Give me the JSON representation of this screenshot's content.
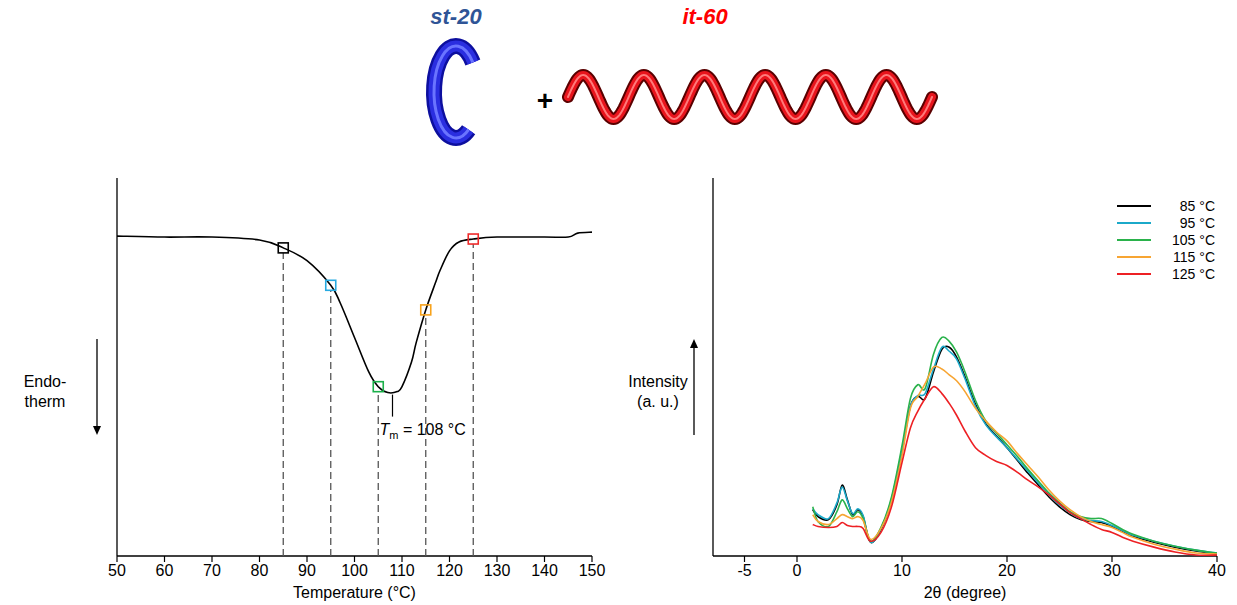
{
  "header": {
    "labels": [
      "st-20",
      "it-60"
    ],
    "colors": [
      "#2f5496",
      "#ff0000"
    ],
    "plus": "+"
  },
  "chart_data": [
    {
      "type": "line",
      "x": [
        50,
        60,
        70,
        80,
        85,
        90,
        95,
        97,
        100,
        103,
        105,
        107,
        109,
        110,
        112,
        113,
        115,
        117,
        118,
        120,
        122,
        125,
        130,
        140,
        145,
        147,
        150
      ],
      "series": [
        {
          "color": "#000000",
          "values": [
            325,
            324,
            324,
            321,
            313,
            300,
            275,
            257,
            222,
            187,
            172,
            166,
            167,
            172,
            197,
            217,
            250,
            277,
            290,
            310,
            319,
            322,
            324,
            324,
            324,
            328,
            329
          ]
        }
      ],
      "xlim": [
        50,
        150
      ],
      "xticks": [
        50,
        60,
        70,
        80,
        90,
        100,
        110,
        120,
        130,
        140,
        150
      ],
      "ylim": [
        0,
        384
      ],
      "xlabel": "Temperature (°C)",
      "ylabel": "Endo-\ntherm",
      "tick_labels": "x",
      "markers": {
        "x": [
          85,
          95,
          105,
          115,
          125
        ],
        "values": [
          313,
          275,
          172,
          250,
          322
        ],
        "colors": [
          "#000000",
          "#27aae1",
          "#1bb04a",
          "#f7a21b",
          "#ee2a2a"
        ]
      },
      "annotation": {
        "x": 108,
        "label": "Tm = 108 °C"
      }
    },
    {
      "type": "line",
      "x": [
        1.5,
        2,
        3,
        3.8,
        4.3,
        4.8,
        5.3,
        5.8,
        6.3,
        7,
        8,
        9,
        10,
        10.8,
        11.5,
        12.2,
        13,
        13.8,
        14.5,
        15.2,
        16,
        17,
        18,
        19,
        20,
        21,
        22,
        23,
        24,
        25,
        26,
        27,
        28,
        29,
        30,
        31,
        32,
        34,
        36,
        38,
        40
      ],
      "series": [
        {
          "name": "85 °C",
          "color": "#000000",
          "values": [
            47,
            40,
            37,
            52,
            72,
            57,
            42,
            47,
            40,
            14,
            27,
            57,
            107,
            152,
            162,
            160,
            187,
            210,
            212,
            202,
            182,
            154,
            134,
            122,
            110,
            97,
            84,
            72,
            60,
            50,
            42,
            37,
            35,
            34,
            30,
            25,
            20,
            14,
            9,
            5,
            2
          ]
        },
        {
          "name": "95 °C",
          "color": "#1ba9c9",
          "values": [
            48,
            42,
            38,
            54,
            70,
            56,
            43,
            48,
            41,
            14,
            28,
            58,
            108,
            152,
            163,
            165,
            190,
            212,
            208,
            200,
            180,
            152,
            133,
            121,
            110,
            98,
            86,
            74,
            62,
            52,
            44,
            38,
            36,
            35,
            31,
            26,
            21,
            15,
            10,
            6,
            3
          ]
        },
        {
          "name": "105 °C",
          "color": "#2ab24b",
          "values": [
            50,
            35,
            30,
            45,
            57,
            48,
            40,
            45,
            38,
            15,
            29,
            60,
            112,
            160,
            174,
            170,
            205,
            222,
            218,
            207,
            187,
            158,
            137,
            125,
            113,
            101,
            88,
            76,
            64,
            54,
            45,
            40,
            38,
            38,
            33,
            27,
            22,
            15,
            10,
            6,
            3
          ]
        },
        {
          "name": "115 °C",
          "color": "#f7a533",
          "values": [
            42,
            35,
            32,
            38,
            42,
            40,
            38,
            40,
            36,
            17,
            28,
            55,
            102,
            150,
            162,
            175,
            192,
            190,
            184,
            178,
            167,
            150,
            137,
            126,
            117,
            104,
            92,
            80,
            67,
            56,
            47,
            40,
            35,
            32,
            29,
            24,
            19,
            12,
            7,
            3,
            2
          ]
        },
        {
          "name": "125 °C",
          "color": "#ed2024",
          "values": [
            32,
            30,
            29,
            30,
            34,
            31,
            30,
            30,
            28,
            15,
            24,
            50,
            95,
            130,
            147,
            160,
            172,
            165,
            155,
            143,
            127,
            110,
            102,
            96,
            92,
            85,
            77,
            70,
            62,
            53,
            44,
            38,
            32,
            27,
            24,
            19,
            15,
            9,
            4,
            1,
            1
          ]
        }
      ],
      "xlim": [
        -8,
        40
      ],
      "xticks": [
        -5,
        0,
        10,
        20,
        30,
        40
      ],
      "ylim": [
        0,
        384
      ],
      "xlabel": "2θ (degree)",
      "ylabel": "Intensity\n(a. u.)",
      "tick_labels": "x",
      "legend": "upper right"
    }
  ]
}
